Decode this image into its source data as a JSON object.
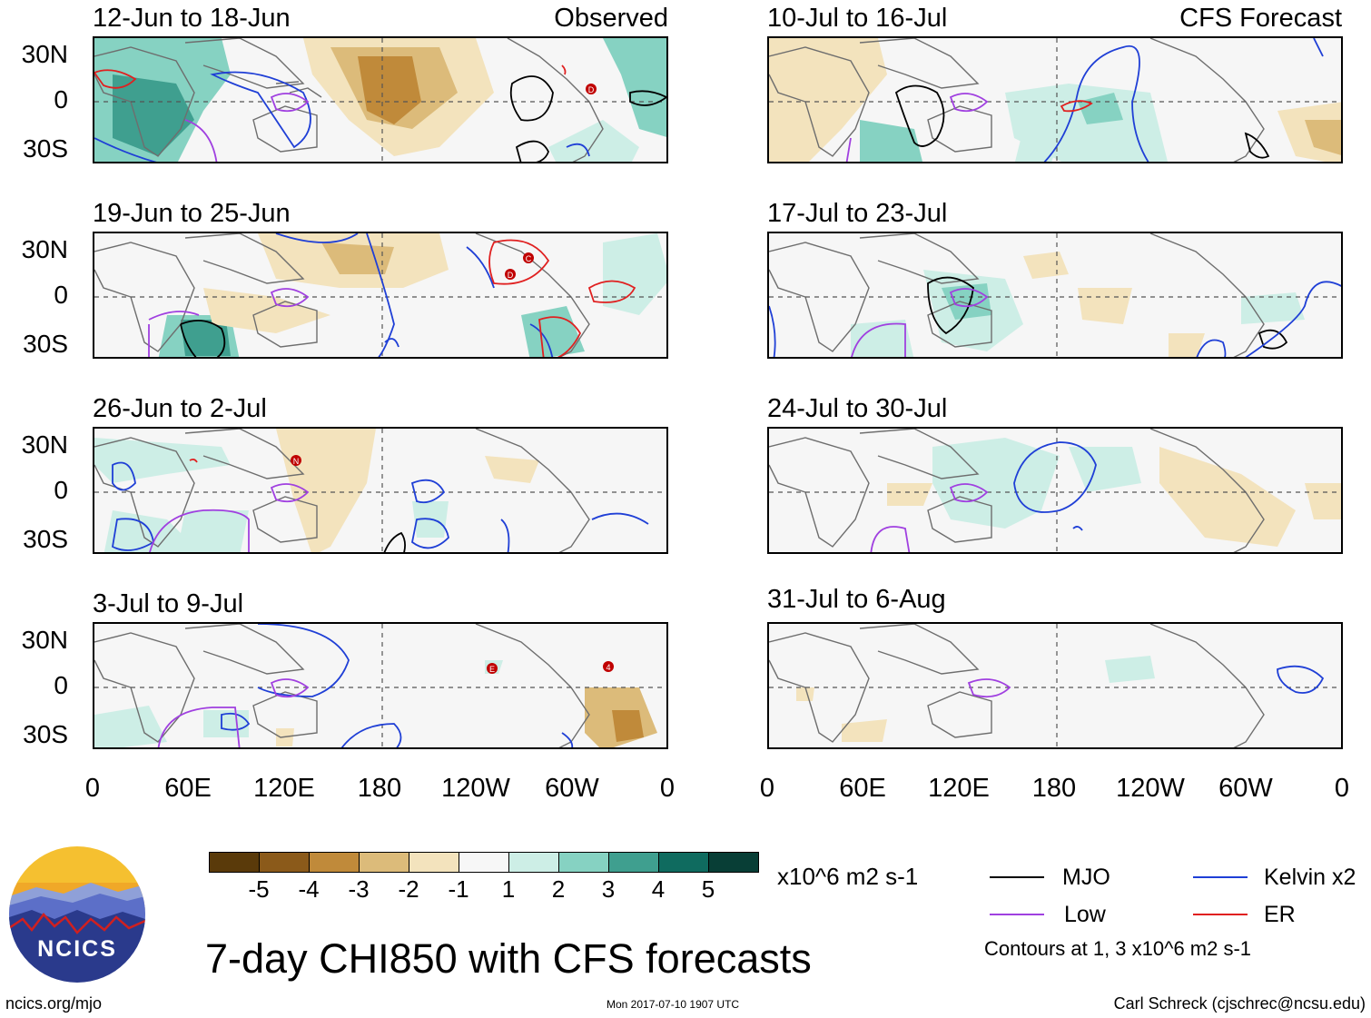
{
  "title": "7-day CHI850 with CFS forecasts",
  "panel_tags": {
    "observed": "Observed",
    "forecast": "CFS Forecast"
  },
  "lat_labels": [
    "30N",
    "0",
    "30S"
  ],
  "lon_labels": [
    "0",
    "60E",
    "120E",
    "180",
    "120W",
    "60W",
    "0"
  ],
  "panels": [
    {
      "period": "12-Jun to 18-Jun",
      "type": "observed",
      "storms": [
        "D"
      ]
    },
    {
      "period": "19-Jun to 25-Jun",
      "type": "observed",
      "storms": [
        "D",
        "C"
      ]
    },
    {
      "period": "26-Jun to 2-Jul",
      "type": "observed",
      "storms": [
        "N"
      ]
    },
    {
      "period": "3-Jul to 9-Jul",
      "type": "observed",
      "storms": [
        "E",
        "4"
      ]
    },
    {
      "period": "10-Jul to 16-Jul",
      "type": "forecast",
      "storms": []
    },
    {
      "period": "17-Jul to 23-Jul",
      "type": "forecast",
      "storms": []
    },
    {
      "period": "24-Jul to 30-Jul",
      "type": "forecast",
      "storms": []
    },
    {
      "period": "31-Jul to 6-Aug",
      "type": "forecast",
      "storms": []
    }
  ],
  "colorbar": {
    "ticks": [
      "-5",
      "-4",
      "-3",
      "-2",
      "-1",
      "1",
      "2",
      "3",
      "4",
      "5"
    ],
    "colors": [
      "#5a3a0a",
      "#8b5a1a",
      "#c08a3a",
      "#dcbb7a",
      "#f3e3bd",
      "#f7f7f7",
      "#cdeee6",
      "#86d2c2",
      "#3f9f8f",
      "#0f6b5f",
      "#083e36"
    ],
    "units": "x10^6 m2 s-1"
  },
  "legend": {
    "items": [
      {
        "label": "MJO",
        "color": "#000000"
      },
      {
        "label": "Kelvin x2",
        "color": "#1f3fd6"
      },
      {
        "label": "Low",
        "color": "#a040e0"
      },
      {
        "label": "ER",
        "color": "#e02020"
      }
    ],
    "contour_note": "Contours at 1, 3 x10^6 m2 s-1"
  },
  "logo": {
    "text": "NCICS"
  },
  "footer": {
    "left": "ncics.org/mjo",
    "middle": "Mon 2017-07-10 1907 UTC",
    "right": "Carl Schreck (cjschrec@ncsu.edu)"
  }
}
